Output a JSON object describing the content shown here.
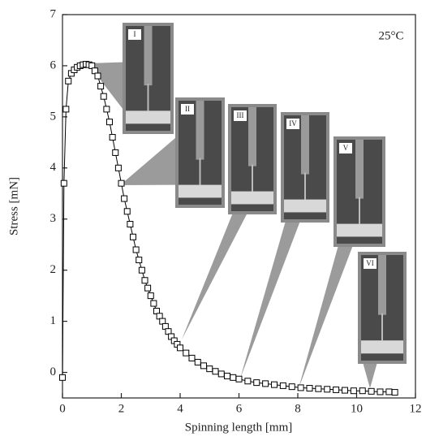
{
  "chart_data": {
    "type": "line",
    "xlabel": "Spinning length [mm]",
    "ylabel": "Stress [mN]",
    "annotation": "25°C",
    "x": [
      0,
      0.05,
      0.12,
      0.2,
      0.3,
      0.4,
      0.5,
      0.6,
      0.7,
      0.8,
      0.9,
      1.0,
      1.1,
      1.2,
      1.3,
      1.4,
      1.5,
      1.6,
      1.7,
      1.8,
      1.9,
      2.0,
      2.1,
      2.2,
      2.3,
      2.4,
      2.5,
      2.6,
      2.7,
      2.8,
      2.9,
      3.0,
      3.1,
      3.2,
      3.3,
      3.4,
      3.5,
      3.6,
      3.7,
      3.8,
      3.9,
      4.0,
      4.2,
      4.4,
      4.6,
      4.8,
      5.0,
      5.2,
      5.4,
      5.6,
      5.8,
      6.0,
      6.3,
      6.6,
      6.9,
      7.2,
      7.5,
      7.8,
      8.1,
      8.4,
      8.7,
      9.0,
      9.3,
      9.6,
      9.9,
      10.2,
      10.5,
      10.8,
      11.1,
      11.3
    ],
    "values": [
      -0.1,
      3.7,
      5.15,
      5.7,
      5.85,
      5.92,
      5.97,
      6.0,
      6.02,
      6.03,
      6.02,
      6.0,
      5.9,
      5.8,
      5.6,
      5.4,
      5.15,
      4.9,
      4.6,
      4.3,
      4.0,
      3.7,
      3.4,
      3.15,
      2.9,
      2.65,
      2.4,
      2.2,
      2.0,
      1.8,
      1.65,
      1.5,
      1.35,
      1.2,
      1.1,
      1.0,
      0.9,
      0.8,
      0.7,
      0.62,
      0.55,
      0.48,
      0.38,
      0.28,
      0.2,
      0.13,
      0.07,
      0.02,
      -0.03,
      -0.07,
      -0.1,
      -0.13,
      -0.17,
      -0.2,
      -0.22,
      -0.24,
      -0.26,
      -0.28,
      -0.3,
      -0.31,
      -0.32,
      -0.33,
      -0.34,
      -0.35,
      -0.36,
      -0.36,
      -0.37,
      -0.38,
      -0.38,
      -0.39
    ],
    "color": "#000000",
    "xlim": [
      0,
      12
    ],
    "xticks": [
      0,
      2,
      4,
      6,
      8,
      10,
      12
    ],
    "ylim": [
      -0.5,
      7
    ],
    "yticks": [
      0,
      1,
      2,
      3,
      4,
      5,
      6,
      7
    ],
    "insets": [
      {
        "label": "I"
      },
      {
        "label": "II"
      },
      {
        "label": "III"
      },
      {
        "label": "IV"
      },
      {
        "label": "V"
      },
      {
        "label": "VI"
      }
    ]
  }
}
